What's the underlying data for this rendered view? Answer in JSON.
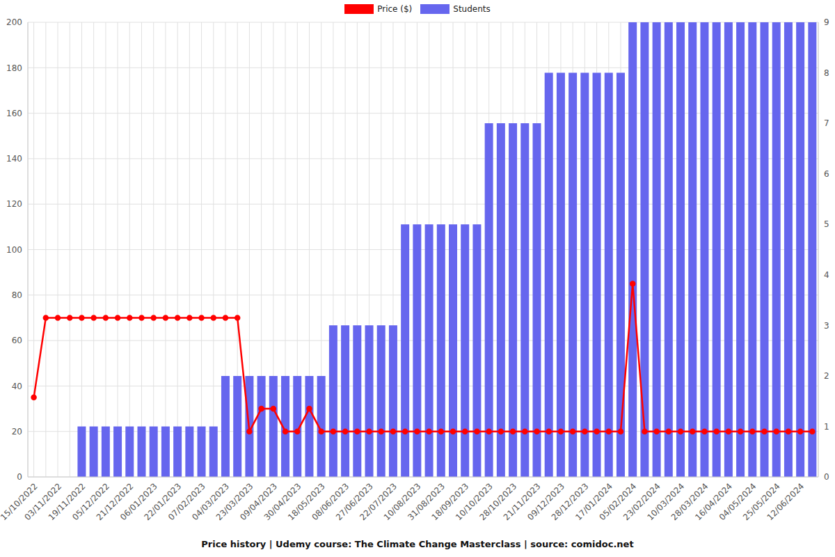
{
  "chart_data": {
    "type": "bar",
    "title": "Price history | Udemy course: The Climate Change Masterclass | source: comidoc.net",
    "categories": [
      "15/10/2022",
      null,
      "03/11/2022",
      null,
      "19/11/2022",
      null,
      "05/12/2022",
      null,
      "21/12/2022",
      null,
      "06/01/2023",
      null,
      "22/01/2023",
      null,
      "07/02/2023",
      null,
      "04/03/2023",
      null,
      "23/03/2023",
      null,
      "09/04/2023",
      null,
      "30/04/2023",
      null,
      "18/05/2023",
      null,
      "08/06/2023",
      null,
      "27/06/2023",
      null,
      "22/07/2023",
      null,
      "10/08/2023",
      null,
      "31/08/2023",
      null,
      "18/09/2023",
      null,
      "10/10/2023",
      null,
      "28/10/2023",
      null,
      "21/11/2023",
      null,
      "09/12/2023",
      null,
      "28/12/2023",
      null,
      "17/01/2024",
      null,
      "05/02/2024",
      null,
      "23/02/2024",
      null,
      "10/03/2024",
      null,
      "28/03/2024",
      null,
      "16/04/2024",
      null,
      "04/05/2024",
      null,
      "25/05/2024",
      null,
      "12/06/2024",
      null
    ],
    "series": [
      {
        "name": "Price ($)",
        "type": "line",
        "color": "#ff0000",
        "marker": "circle",
        "values": [
          35,
          70,
          70,
          70,
          70,
          70,
          70,
          70,
          70,
          70,
          70,
          70,
          70,
          70,
          70,
          70,
          70,
          70,
          20,
          30,
          30,
          20,
          20,
          30,
          20,
          20,
          20,
          20,
          20,
          20,
          20,
          20,
          20,
          20,
          20,
          20,
          20,
          20,
          20,
          20,
          20,
          20,
          20,
          20,
          20,
          20,
          20,
          20,
          20,
          20,
          85,
          20,
          20,
          20,
          20,
          20,
          20,
          20,
          20,
          20,
          20,
          20,
          20,
          20,
          20,
          20
        ]
      },
      {
        "name": "Students",
        "type": "bar",
        "axis": "y2",
        "color": "#6666ee",
        "values": [
          0,
          0,
          0,
          0,
          1,
          1,
          1,
          1,
          1,
          1,
          1,
          1,
          1,
          1,
          1,
          1,
          2,
          2,
          2,
          2,
          2,
          2,
          2,
          2,
          2,
          3,
          3,
          3,
          3,
          3,
          3,
          5,
          5,
          5,
          5,
          5,
          5,
          5,
          7,
          7,
          7,
          7,
          7,
          8,
          8,
          8,
          8,
          8,
          8,
          8,
          9,
          9,
          9,
          9,
          9,
          9,
          9,
          9,
          9,
          9,
          9,
          9,
          9,
          9,
          9,
          9
        ]
      }
    ],
    "ylim": [
      0,
      200
    ],
    "yticks": [
      0,
      20,
      40,
      60,
      80,
      100,
      120,
      140,
      160,
      180,
      200
    ],
    "y2lim": [
      0,
      9
    ],
    "y2ticks": [
      0,
      1,
      2,
      3,
      4,
      5,
      6,
      7,
      8,
      9
    ],
    "grid": true,
    "legend": "top"
  }
}
